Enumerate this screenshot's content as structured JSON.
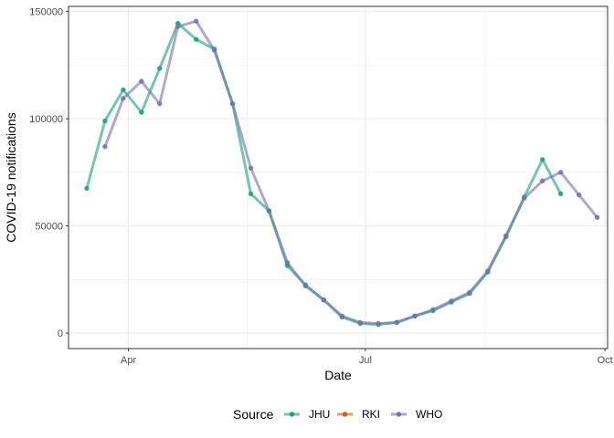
{
  "chart_data": {
    "type": "line",
    "xlabel": "Date",
    "ylabel": "COVID-19 notifications",
    "x_range": [
      "2020-03-09",
      "2020-10-02"
    ],
    "ylim": [
      -7200,
      152400
    ],
    "x_ticks": [
      {
        "date": "2020-04-01",
        "label": "Apr"
      },
      {
        "date": "2020-07-01",
        "label": "Jul"
      },
      {
        "date": "2020-10-01",
        "label": "Oct"
      }
    ],
    "y_ticks": [
      {
        "value": 0,
        "label": "0"
      },
      {
        "value": 50000,
        "label": "50000"
      },
      {
        "value": 100000,
        "label": "100000"
      },
      {
        "value": 150000,
        "label": "150000"
      }
    ],
    "grid": true,
    "legend": {
      "title": "Source",
      "position": "bottom"
    },
    "series": [
      {
        "name": "JHU",
        "color": "#1b9e77",
        "points": [
          [
            "2020-03-16",
            67500
          ],
          [
            "2020-03-23",
            99000
          ],
          [
            "2020-03-30",
            113500
          ],
          [
            "2020-04-06",
            103000
          ],
          [
            "2020-04-13",
            123500
          ],
          [
            "2020-04-20",
            144500
          ],
          [
            "2020-04-27",
            137000
          ],
          [
            "2020-05-04",
            132500
          ],
          [
            "2020-05-11",
            107000
          ],
          [
            "2020-05-18",
            65000
          ],
          [
            "2020-05-25",
            57000
          ],
          [
            "2020-06-01",
            31500
          ],
          [
            "2020-06-08",
            22500
          ],
          [
            "2020-06-15",
            15500
          ],
          [
            "2020-06-22",
            7500
          ],
          [
            "2020-06-29",
            4500
          ],
          [
            "2020-07-06",
            4000
          ],
          [
            "2020-07-13",
            5000
          ],
          [
            "2020-07-20",
            8000
          ],
          [
            "2020-07-27",
            10500
          ],
          [
            "2020-08-03",
            14500
          ],
          [
            "2020-08-10",
            18500
          ],
          [
            "2020-08-17",
            28500
          ],
          [
            "2020-08-24",
            45000
          ],
          [
            "2020-08-31",
            63500
          ],
          [
            "2020-09-07",
            81000
          ],
          [
            "2020-09-14",
            65000
          ]
        ]
      },
      {
        "name": "RKI",
        "color": "#d95f02",
        "points": []
      },
      {
        "name": "WHO",
        "color": "#7570b3",
        "points": [
          [
            "2020-03-23",
            87000
          ],
          [
            "2020-03-30",
            109500
          ],
          [
            "2020-04-06",
            117500
          ],
          [
            "2020-04-13",
            107000
          ],
          [
            "2020-04-20",
            143000
          ],
          [
            "2020-04-27",
            145500
          ],
          [
            "2020-05-04",
            132000
          ],
          [
            "2020-05-11",
            107000
          ],
          [
            "2020-05-18",
            77000
          ],
          [
            "2020-05-25",
            57000
          ],
          [
            "2020-06-01",
            33000
          ],
          [
            "2020-06-08",
            22000
          ],
          [
            "2020-06-15",
            15500
          ],
          [
            "2020-06-22",
            8000
          ],
          [
            "2020-06-29",
            5000
          ],
          [
            "2020-07-06",
            4500
          ],
          [
            "2020-07-13",
            5000
          ],
          [
            "2020-07-20",
            8000
          ],
          [
            "2020-07-27",
            11000
          ],
          [
            "2020-08-03",
            15000
          ],
          [
            "2020-08-10",
            19000
          ],
          [
            "2020-08-17",
            29000
          ],
          [
            "2020-08-24",
            45500
          ],
          [
            "2020-08-31",
            63000
          ],
          [
            "2020-09-07",
            71000
          ],
          [
            "2020-09-14",
            75000
          ],
          [
            "2020-09-21",
            64500
          ],
          [
            "2020-09-28",
            54000
          ]
        ]
      }
    ]
  }
}
